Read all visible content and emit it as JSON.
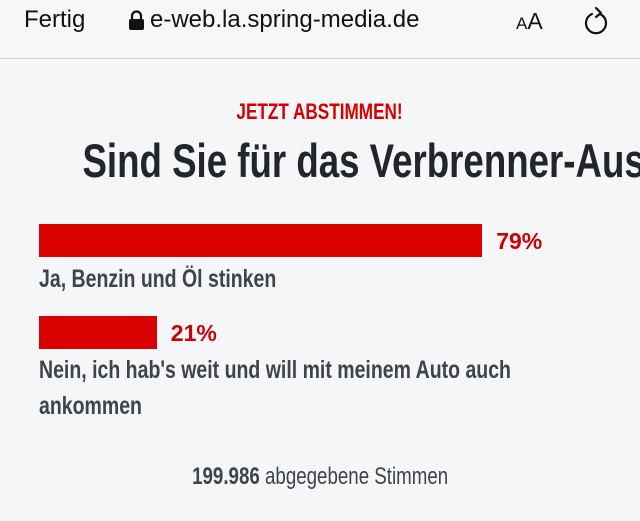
{
  "browser": {
    "done_label": "Fertig",
    "url": "e-web.la.spring-media.de",
    "text_size_label_small": "A",
    "text_size_label_large": "A"
  },
  "poll": {
    "kicker": "JETZT ABSTIMMEN!",
    "question": "Sind Sie für das Verbrenner-Aus?",
    "options": [
      {
        "label": "Ja, Benzin und Öl stinken",
        "percent_label": "79%",
        "percent": 79
      },
      {
        "label": "Nein, ich hab's weit und will mit meinem Auto auch ankommen",
        "percent_label": "21%",
        "percent": 21
      }
    ],
    "votes_count": "199.986",
    "votes_label": "abgegebene Stimmen",
    "accent_color": "#d90000"
  }
}
